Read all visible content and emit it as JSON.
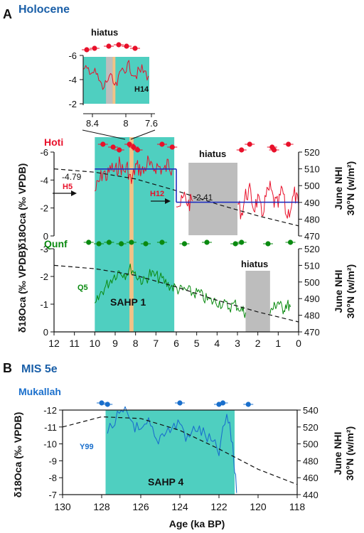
{
  "panel_a": {
    "letter": "A",
    "title": "Holocene",
    "hiatus_labels": [
      "hiatus",
      "hiatus",
      "hiatus"
    ],
    "sahp_label": "SAHP 1",
    "inset_record": "H14",
    "zoom_x_ticks": [
      "8.4",
      "8",
      "7.6"
    ],
    "hoti": {
      "name": "Hoti",
      "mean_early": "-4.79",
      "mean_late": "-2.41",
      "marker_h5": "H5",
      "marker_h12": "H12"
    },
    "qunf": {
      "name": "Qunf",
      "record": "Q5"
    },
    "left_axis_label": "δ18Oca (‰ VPDB)",
    "right_axis_label_1": "June NHI",
    "right_axis_label_2": "30°N (w/m²)"
  },
  "panel_b": {
    "letter": "B",
    "title": "MIS 5e",
    "series_name": "Mukallah",
    "record": "Y99",
    "sahp_label": "SAHP 4",
    "x_axis_label": "Age (ka BP)",
    "left_axis_label": "δ18Oca (‰ VPDB)",
    "right_axis_label_1": "June NHI",
    "right_axis_label_2": "30°N (w/m²)"
  },
  "colors": {
    "sahp_band": "#4fcfc0",
    "hiatus": "#bdbdbd",
    "event_band": "#f2c287",
    "hoti": "#e8102a",
    "qunf": "#0a8a10",
    "mukallah": "#1a6fcc",
    "step_mean": "#1f2fbf",
    "insolation": "#111111"
  },
  "chart_data": [
    {
      "type": "line",
      "title": "Hoti",
      "xlabel": "Age (ka BP)",
      "ylabel": "δ18Oca (‰ VPDB)",
      "xlim": [
        12,
        0
      ],
      "ylim": [
        0,
        -6
      ],
      "x_ticks": [
        12,
        11,
        10,
        9,
        8,
        7,
        6,
        5,
        4,
        3,
        2,
        1,
        0
      ],
      "y_ticks": [
        -6,
        -4,
        -2,
        0
      ],
      "right_axis": {
        "label": "June NHI 30°N (w/m²)",
        "ylim": [
          470,
          520
        ],
        "ticks": [
          520,
          510,
          500,
          490,
          480,
          470
        ]
      },
      "series": [
        {
          "name": "Hoti",
          "record": "H5",
          "x": [
            10.0,
            9.8,
            9.6,
            9.4,
            9.2,
            9.0,
            8.8,
            8.6,
            8.4,
            8.2,
            8.0,
            7.8,
            7.6,
            7.4,
            7.2,
            7.0,
            6.8,
            6.6,
            6.4,
            6.2
          ],
          "y": [
            -3.2,
            -3.8,
            -4.6,
            -4.2,
            -4.9,
            -4.5,
            -5.2,
            -4.6,
            -4.9,
            -3.8,
            -5.0,
            -4.8,
            -4.6,
            -5.3,
            -4.7,
            -5.0,
            -4.9,
            -4.6,
            -5.2,
            -4.8
          ]
        },
        {
          "name": "Hoti",
          "record": "H12",
          "x": [
            6.0,
            5.8,
            5.6,
            5.4,
            5.2
          ],
          "y": [
            -2.6,
            -2.2,
            -2.8,
            -2.3,
            -2.5
          ]
        },
        {
          "name": "Hoti",
          "x": [
            3.0,
            2.8,
            2.6,
            2.4,
            2.2,
            2.0,
            1.8,
            1.6,
            1.4,
            1.2,
            1.0,
            0.8,
            0.6,
            0.4,
            0.2,
            0.0
          ],
          "y": [
            -2.4,
            -1.6,
            -2.9,
            -3.2,
            -2.0,
            -2.6,
            -1.5,
            -2.8,
            -3.4,
            -2.4,
            -2.2,
            -3.4,
            -1.4,
            -2.0,
            -3.0,
            -2.2
          ]
        }
      ],
      "step_means": [
        {
          "x": [
            10.0,
            6.0
          ],
          "y": -4.79,
          "label": "-4.79"
        },
        {
          "x": [
            6.0,
            0.0
          ],
          "y": -2.41,
          "label": "-2.41"
        }
      ],
      "insolation": {
        "x": [
          12,
          10,
          8,
          6,
          4,
          2,
          0
        ],
        "y": [
          510,
          508,
          504,
          497,
          489,
          482,
          476
        ]
      },
      "hiatus": [
        5.4,
        3.0
      ],
      "ages_ka": [
        9.6,
        9.1,
        8.8,
        8.3,
        8.1,
        7.9,
        6.7,
        6.2,
        2.8,
        2.4,
        1.3,
        1.2,
        0.5
      ]
    },
    {
      "type": "line",
      "title": "Qunf",
      "xlabel": "Age (ka BP)",
      "ylabel": "δ18Oca (‰ VPDB)",
      "xlim": [
        12,
        0
      ],
      "ylim": [
        0,
        -3
      ],
      "y_ticks": [
        -3,
        -2,
        -1,
        0
      ],
      "right_axis": {
        "label": "June NHI 30°N (w/m²)",
        "ylim": [
          470,
          520
        ],
        "ticks": [
          520,
          510,
          500,
          490,
          480,
          470
        ]
      },
      "series": [
        {
          "name": "Qunf",
          "record": "Q5",
          "x": [
            10.0,
            9.7,
            9.4,
            9.1,
            8.8,
            8.5,
            8.2,
            7.9,
            7.6,
            7.3,
            7.0,
            6.7,
            6.4,
            6.1,
            5.8,
            5.5,
            5.2,
            4.9,
            4.6,
            4.3,
            4.0,
            3.7,
            3.4,
            3.1,
            2.8,
            2.6
          ],
          "y": [
            -0.9,
            -1.4,
            -1.7,
            -2.0,
            -2.2,
            -2.1,
            -2.3,
            -2.0,
            -1.8,
            -2.1,
            -2.0,
            -1.9,
            -1.7,
            -1.6,
            -1.5,
            -1.5,
            -1.4,
            -1.4,
            -1.2,
            -1.1,
            -1.1,
            -1.0,
            -0.9,
            -1.0,
            -0.8,
            -0.7
          ]
        },
        {
          "name": "Qunf",
          "x": [
            1.4,
            1.2,
            1.0,
            0.8,
            0.6,
            0.4
          ],
          "y": [
            -0.7,
            -0.9,
            -1.1,
            -0.8,
            -1.0,
            -0.9
          ]
        }
      ],
      "insolation": {
        "x": [
          12,
          10,
          8,
          6,
          4,
          2,
          0
        ],
        "y": [
          510,
          508,
          504,
          497,
          489,
          482,
          476
        ]
      },
      "hiatus": [
        2.6,
        1.4
      ],
      "sahp": [
        10.0,
        6.1
      ],
      "event_band": [
        8.3,
        8.1
      ],
      "ages_ka": [
        10.3,
        9.8,
        9.3,
        8.7,
        8.2,
        7.5,
        6.7,
        5.6,
        4.5,
        3.1,
        2.8,
        1.5,
        0.4
      ]
    },
    {
      "type": "line",
      "title": "H14",
      "xlim": [
        8.6,
        7.5
      ],
      "ylim": [
        -2,
        -6
      ],
      "x_ticks": [
        8.4,
        8.0,
        7.6
      ],
      "y_ticks": [
        -6,
        -4,
        -2
      ],
      "series": [
        {
          "name": "H14",
          "x": [
            8.6,
            8.5,
            8.4,
            8.3,
            8.2,
            8.1,
            8.0,
            7.9,
            7.8,
            7.7,
            7.6
          ],
          "y": [
            -4.6,
            -4.9,
            -4.4,
            -3.2,
            -4.3,
            -3.3,
            -4.9,
            -5.1,
            -4.4,
            -4.8,
            -4.3
          ]
        }
      ],
      "hiatus": [
        8.25,
        8.15
      ]
    },
    {
      "type": "line",
      "title": "Mukallah",
      "xlabel": "Age (ka BP)",
      "ylabel": "δ18Oca (‰ VPDB)",
      "xlim": [
        130,
        118
      ],
      "ylim": [
        -7,
        -12
      ],
      "x_ticks": [
        130,
        128,
        126,
        124,
        122,
        120,
        118
      ],
      "y_ticks": [
        -12,
        -11,
        -10,
        -9,
        -8,
        -7
      ],
      "right_axis": {
        "label": "June NHI 30°N (w/m²)",
        "ylim": [
          440,
          540
        ],
        "ticks": [
          540,
          520,
          500,
          480,
          460,
          440
        ]
      },
      "series": [
        {
          "name": "Mukallah",
          "record": "Y99",
          "x": [
            127.7,
            127.2,
            126.8,
            126.4,
            126.0,
            125.6,
            125.2,
            124.8,
            124.4,
            124.0,
            123.6,
            123.2,
            122.8,
            122.4,
            122.0,
            121.6,
            121.3,
            121.1
          ],
          "y": [
            -10.7,
            -11.5,
            -11.8,
            -11.3,
            -10.5,
            -11.2,
            -10.1,
            -10.8,
            -10.9,
            -11.3,
            -10.2,
            -11.0,
            -10.6,
            -10.1,
            -9.5,
            -11.7,
            -10.0,
            -7.1
          ]
        }
      ],
      "insolation": {
        "x": [
          130,
          128,
          126,
          124,
          122,
          120,
          118
        ],
        "y": [
          520,
          532,
          530,
          516,
          494,
          470,
          452
        ]
      },
      "sahp": [
        127.8,
        121.2
      ],
      "ages_ka": [
        128.0,
        127.7,
        124.0,
        122.0,
        121.8,
        120.5
      ]
    }
  ]
}
